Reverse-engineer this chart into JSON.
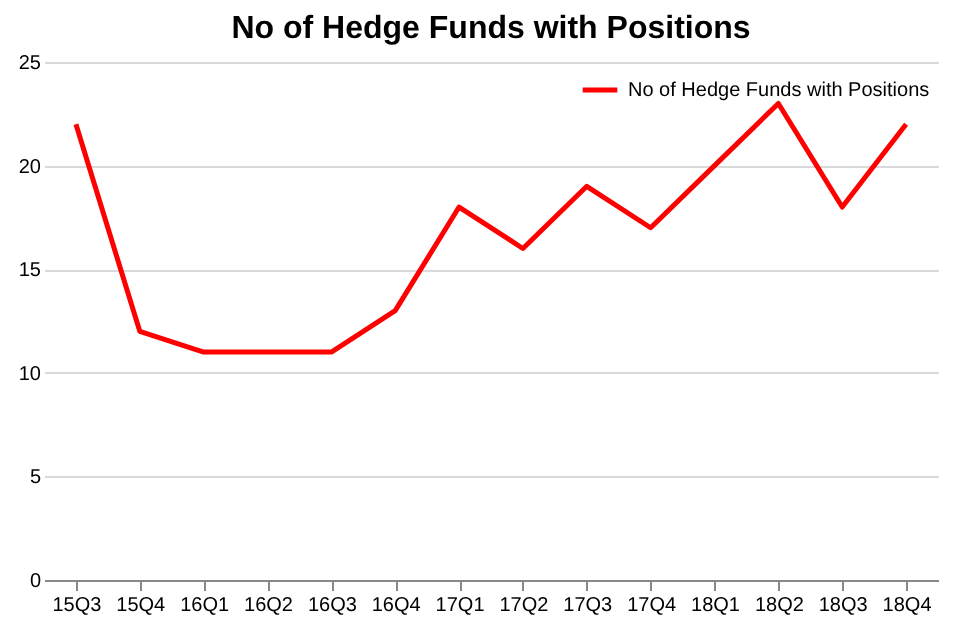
{
  "chart_data": {
    "type": "line",
    "title": "No of Hedge Funds with Positions",
    "categories": [
      "15Q3",
      "15Q4",
      "16Q1",
      "16Q2",
      "16Q3",
      "16Q4",
      "17Q1",
      "17Q2",
      "17Q3",
      "17Q4",
      "18Q1",
      "18Q2",
      "18Q3",
      "18Q4"
    ],
    "series": [
      {
        "name": "No of Hedge Funds with Positions",
        "color": "#ff0000",
        "values": [
          22,
          12,
          11,
          11,
          11,
          13,
          18,
          16,
          19,
          17,
          20,
          23,
          18,
          22
        ]
      }
    ],
    "ylim": [
      0,
      25
    ],
    "yticks": [
      0,
      5,
      10,
      15,
      20,
      25
    ],
    "grid": "y",
    "legend": "top right"
  }
}
